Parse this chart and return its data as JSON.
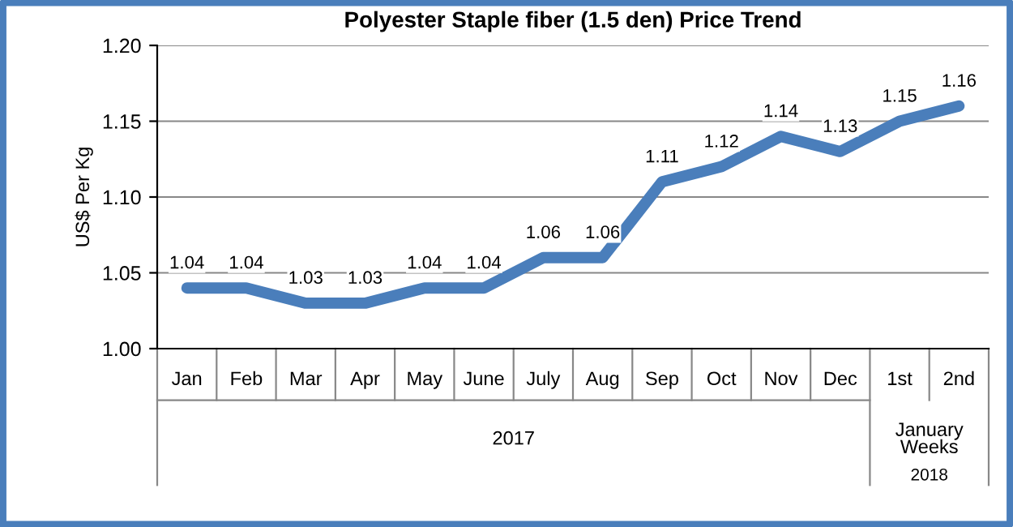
{
  "chart_data": {
    "type": "line",
    "title": "Polyester Staple fiber (1.5 den) Price Trend",
    "ylabel": "US$ Per Kg",
    "categories": [
      "Jan",
      "Feb",
      "Mar",
      "Apr",
      "May",
      "June",
      "July",
      "Aug",
      "Sep",
      "Oct",
      "Nov",
      "Dec",
      "1st",
      "2nd"
    ],
    "series": [
      {
        "color": "#4a7ebb",
        "values": [
          1.04,
          1.04,
          1.03,
          1.03,
          1.04,
          1.04,
          1.06,
          1.06,
          1.11,
          1.12,
          1.14,
          1.13,
          1.15,
          1.16
        ]
      }
    ],
    "ylim": [
      1.0,
      1.2
    ],
    "yticks": [
      {
        "value": 1.0,
        "label": "1.00"
      },
      {
        "value": 1.05,
        "label": "1.05"
      },
      {
        "value": 1.1,
        "label": "1.10"
      },
      {
        "value": 1.15,
        "label": "1.15"
      },
      {
        "value": 1.2,
        "label": "1.20"
      }
    ],
    "grid": "y",
    "data_labels": true,
    "marker": "none",
    "line_style": "solid",
    "annotations": [
      "2017",
      "January\nWeeks",
      "2018"
    ]
  }
}
